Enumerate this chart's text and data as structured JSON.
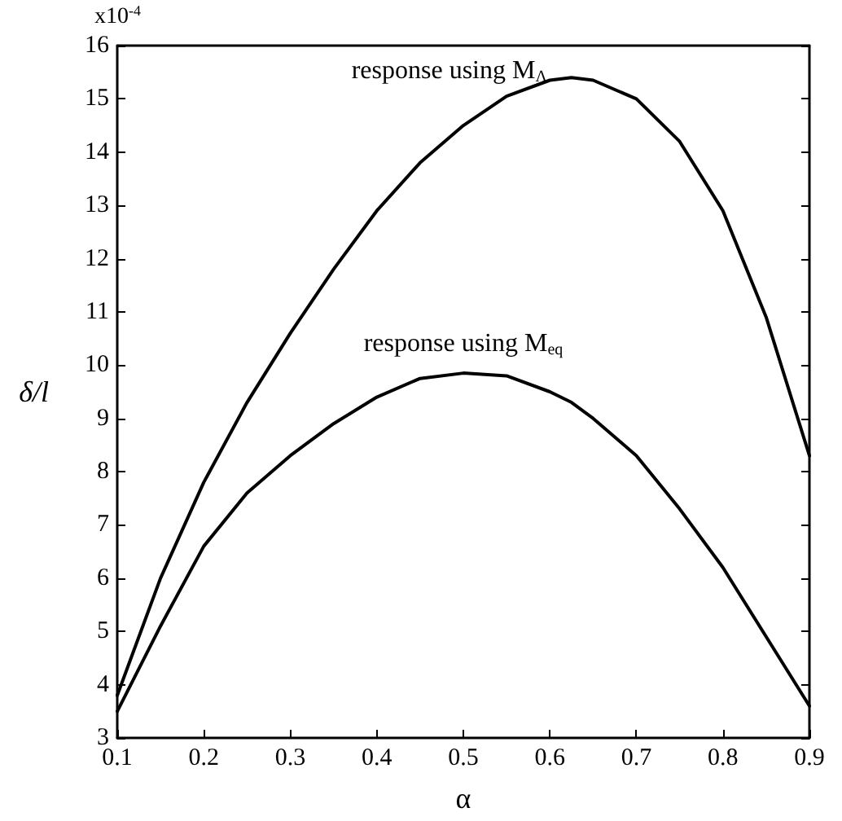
{
  "chart_data": {
    "type": "line",
    "xlabel": "α",
    "ylabel": "δ/l",
    "annotations": [
      "x10$^{-4}$"
    ],
    "x": [
      0.1,
      0.15,
      0.2,
      0.25,
      0.3,
      0.35,
      0.4,
      0.45,
      0.5,
      0.55,
      0.6,
      0.625,
      0.65,
      0.7,
      0.75,
      0.8,
      0.85,
      0.9
    ],
    "series": [
      {
        "name": "response using M$_{Λ}$",
        "color": "#000000",
        "values": [
          3.8,
          6.0,
          7.8,
          9.3,
          10.6,
          11.8,
          12.9,
          13.8,
          14.5,
          15.05,
          15.35,
          15.4,
          15.35,
          15.0,
          14.2,
          12.9,
          10.9,
          8.3
        ]
      },
      {
        "name": "response using M$_{eq}$",
        "color": "#000000",
        "values": [
          3.5,
          5.1,
          6.6,
          7.6,
          8.3,
          8.9,
          9.4,
          9.75,
          9.85,
          9.8,
          9.5,
          9.3,
          9.0,
          8.3,
          7.3,
          6.2,
          4.9,
          3.6
        ]
      }
    ],
    "xlim": [
      0.1,
      0.9
    ],
    "xticks": [
      0.1,
      0.2,
      0.3,
      0.4,
      0.5,
      0.6,
      0.7,
      0.8,
      0.9
    ],
    "ylim": [
      3,
      16
    ],
    "yticks": [
      3,
      4,
      5,
      6,
      7,
      8,
      9,
      10,
      11,
      12,
      13,
      14,
      15,
      16
    ],
    "grid": false,
    "legend": false,
    "marker": "none",
    "line_style": "solid"
  }
}
